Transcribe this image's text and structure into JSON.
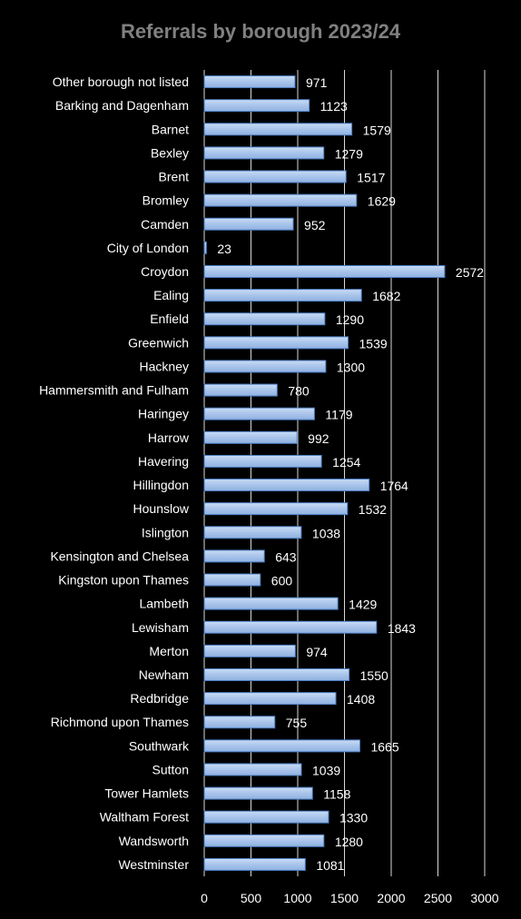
{
  "chart_data": {
    "type": "bar",
    "orientation": "horizontal",
    "title": "Referrals by borough 2023/24",
    "categories": [
      "Other borough not listed",
      "Barking and Dagenham",
      "Barnet",
      "Bexley",
      "Brent",
      "Bromley",
      "Camden",
      "City of London",
      "Croydon",
      "Ealing",
      "Enfield",
      "Greenwich",
      "Hackney",
      "Hammersmith and Fulham",
      "Haringey",
      "Harrow",
      "Havering",
      "Hillingdon",
      "Hounslow",
      "Islington",
      "Kensington and Chelsea",
      "Kingston upon Thames",
      "Lambeth",
      "Lewisham",
      "Merton",
      "Newham",
      "Redbridge",
      "Richmond upon Thames",
      "Southwark",
      "Sutton",
      "Tower Hamlets",
      "Waltham Forest",
      "Wandsworth",
      "Westminster"
    ],
    "values": [
      971,
      1123,
      1579,
      1279,
      1517,
      1629,
      952,
      23,
      2572,
      1682,
      1290,
      1539,
      1300,
      780,
      1179,
      992,
      1254,
      1764,
      1532,
      1038,
      643,
      600,
      1429,
      1843,
      974,
      1550,
      1408,
      755,
      1665,
      1039,
      1158,
      1330,
      1280,
      1081
    ],
    "xlim": [
      0,
      3000
    ],
    "xticks": [
      "0",
      "500",
      "1000",
      "1500",
      "2000",
      "2500",
      "3000"
    ],
    "grid": "vertical",
    "legend": "none",
    "colors": {
      "background": "#000000",
      "bar_fill": "#a9c4eb",
      "bar_stroke": "#4a7cc0",
      "title": "#808080",
      "text": "#ffffff",
      "grid": "#d9d9d9"
    }
  }
}
